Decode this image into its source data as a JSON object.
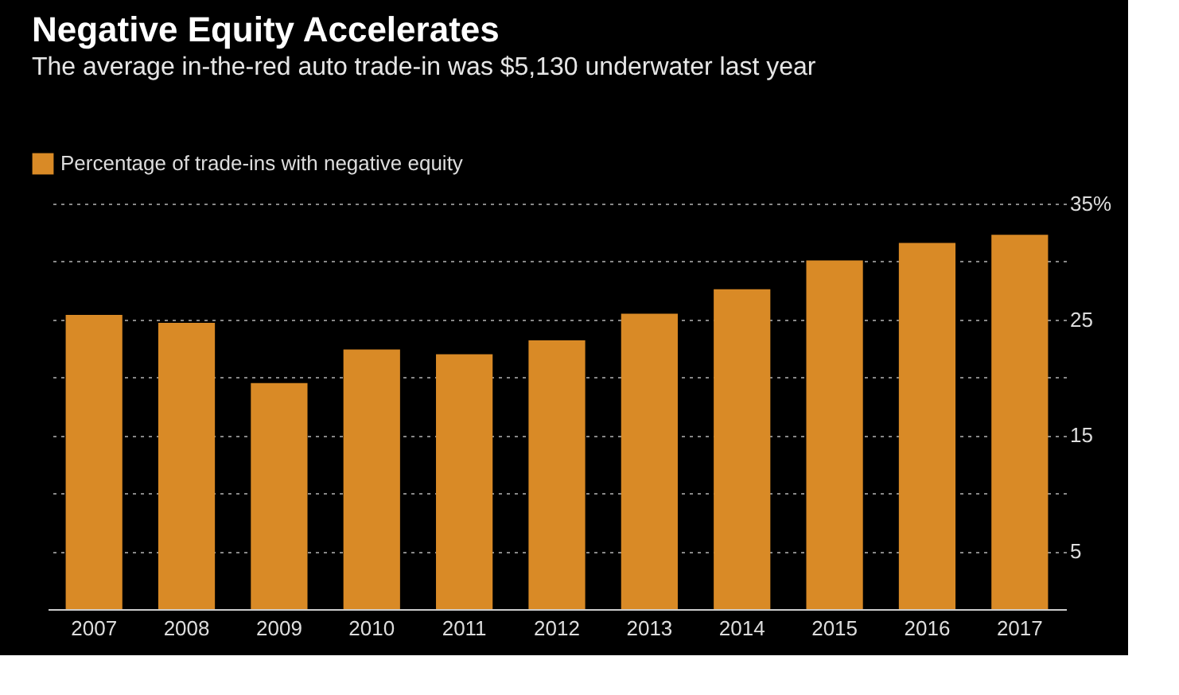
{
  "chart_data": {
    "type": "bar",
    "title": "Negative Equity Accelerates",
    "subtitle": "The average in-the-red auto trade-in was $5,130 underwater last year",
    "categories": [
      "2007",
      "2008",
      "2009",
      "2010",
      "2011",
      "2012",
      "2013",
      "2014",
      "2015",
      "2016",
      "2017"
    ],
    "series": [
      {
        "name": "Percentage of trade-ins with negative equity",
        "color": "#d98a26",
        "values": [
          25.4,
          24.7,
          19.5,
          22.4,
          22.0,
          23.2,
          25.5,
          27.6,
          30.1,
          31.6,
          32.3
        ]
      }
    ],
    "ylim": [
      0,
      35
    ],
    "yticks": [
      {
        "value": 5,
        "label": "5"
      },
      {
        "value": 10,
        "label": null
      },
      {
        "value": 15,
        "label": "15"
      },
      {
        "value": 20,
        "label": null
      },
      {
        "value": 25,
        "label": "25"
      },
      {
        "value": 30,
        "label": null
      },
      {
        "value": 35,
        "label": "35%"
      }
    ],
    "grid": "y",
    "legend": "top left"
  }
}
